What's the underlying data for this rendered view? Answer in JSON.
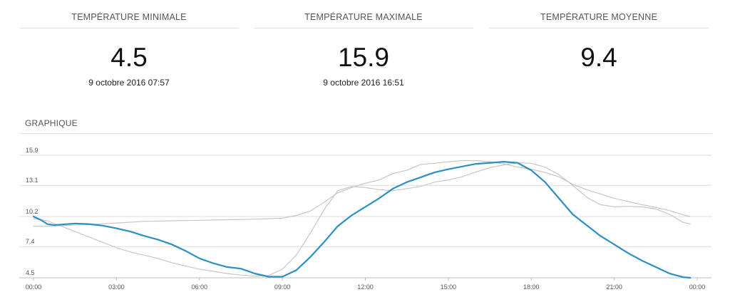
{
  "stats": [
    {
      "title": "TEMPÉRATURE MINIMALE",
      "value": "4.5",
      "date": "9 octobre 2016 07:57"
    },
    {
      "title": "TEMPÉRATURE MAXIMALE",
      "value": "15.9",
      "date": "9 octobre 2016 16:51"
    },
    {
      "title": "TEMPÉRATURE MOYENNE",
      "value": "9.4",
      "date": ""
    }
  ],
  "section": {
    "title": "GRAPHIQUE"
  },
  "chart_data": {
    "type": "line",
    "xlabel": "",
    "ylabel": "",
    "x_ticks": [
      "00:00",
      "03:00",
      "06:00",
      "09:00",
      "12:00",
      "15:00",
      "18:00",
      "21:00",
      "00:00"
    ],
    "xlim": [
      0,
      24
    ],
    "y_ticks": [
      "4.5",
      "7.4",
      "10.2",
      "13.1",
      "15.9"
    ],
    "y_tick_values": [
      4.5,
      7.4,
      10.2,
      13.1,
      15.9
    ],
    "ylim": [
      4.5,
      15.9
    ],
    "grid": true,
    "legend": "none",
    "series": [
      {
        "color": "#2b8fc6",
        "emphasis": "main",
        "points": [
          [
            0,
            10.2
          ],
          [
            0.25,
            9.9
          ],
          [
            0.5,
            9.5
          ],
          [
            0.75,
            9.4
          ],
          [
            1,
            9.45
          ],
          [
            1.5,
            9.55
          ],
          [
            2,
            9.5
          ],
          [
            2.5,
            9.35
          ],
          [
            3,
            9.1
          ],
          [
            3.5,
            8.8
          ],
          [
            4,
            8.4
          ],
          [
            4.5,
            8.05
          ],
          [
            5,
            7.6
          ],
          [
            5.5,
            7.0
          ],
          [
            6,
            6.3
          ],
          [
            6.5,
            5.85
          ],
          [
            7,
            5.5
          ],
          [
            7.5,
            5.35
          ],
          [
            8,
            4.9
          ],
          [
            8.5,
            4.6
          ],
          [
            9,
            4.6
          ],
          [
            9.5,
            5.2
          ],
          [
            10,
            6.4
          ],
          [
            10.5,
            7.8
          ],
          [
            11,
            9.3
          ],
          [
            11.5,
            10.3
          ],
          [
            12,
            11.1
          ],
          [
            12.5,
            11.9
          ],
          [
            13,
            12.8
          ],
          [
            13.5,
            13.4
          ],
          [
            14,
            13.85
          ],
          [
            14.5,
            14.3
          ],
          [
            15,
            14.6
          ],
          [
            15.5,
            14.85
          ],
          [
            16,
            15.1
          ],
          [
            16.5,
            15.2
          ],
          [
            17,
            15.3
          ],
          [
            17.5,
            15.2
          ],
          [
            18,
            14.5
          ],
          [
            18.5,
            13.4
          ],
          [
            19,
            11.9
          ],
          [
            19.5,
            10.4
          ],
          [
            20,
            9.4
          ],
          [
            20.5,
            8.4
          ],
          [
            21,
            7.6
          ],
          [
            21.5,
            6.8
          ],
          [
            22,
            6.1
          ],
          [
            22.5,
            5.5
          ],
          [
            23,
            4.9
          ],
          [
            23.5,
            4.55
          ],
          [
            23.75,
            4.5
          ]
        ]
      },
      {
        "color": "#c6c6c6",
        "emphasis": "reference",
        "points": [
          [
            0,
            9.3
          ],
          [
            0.5,
            9.3
          ],
          [
            1,
            9.35
          ],
          [
            2,
            9.45
          ],
          [
            3,
            9.6
          ],
          [
            4,
            9.75
          ],
          [
            5,
            9.8
          ],
          [
            6,
            9.85
          ],
          [
            7,
            9.9
          ],
          [
            8,
            9.95
          ],
          [
            9,
            10.05
          ],
          [
            9.5,
            10.3
          ],
          [
            10,
            10.7
          ],
          [
            10.5,
            11.5
          ],
          [
            11,
            12.4
          ],
          [
            11.5,
            12.9
          ],
          [
            12,
            13.3
          ],
          [
            12.5,
            13.6
          ],
          [
            13,
            14.2
          ],
          [
            13.5,
            14.5
          ],
          [
            14,
            15.05
          ],
          [
            14.5,
            15.15
          ],
          [
            15,
            15.3
          ],
          [
            15.5,
            15.4
          ],
          [
            16,
            15.4
          ],
          [
            16.5,
            15.3
          ],
          [
            17,
            15.1
          ],
          [
            17.5,
            14.8
          ],
          [
            18,
            14.6
          ],
          [
            18.5,
            14.3
          ],
          [
            19,
            13.9
          ],
          [
            19.5,
            13.2
          ],
          [
            20,
            12.7
          ],
          [
            20.5,
            12.3
          ],
          [
            21,
            11.9
          ],
          [
            21.5,
            11.6
          ],
          [
            22,
            11.3
          ],
          [
            22.5,
            11.05
          ],
          [
            23,
            10.75
          ],
          [
            23.5,
            10.35
          ],
          [
            23.75,
            10.2
          ]
        ]
      },
      {
        "color": "#c6c6c6",
        "emphasis": "reference",
        "points": [
          [
            0,
            10.0
          ],
          [
            0.5,
            9.8
          ],
          [
            1,
            9.3
          ],
          [
            1.5,
            8.8
          ],
          [
            2,
            8.3
          ],
          [
            2.5,
            7.8
          ],
          [
            3,
            7.3
          ],
          [
            3.5,
            6.9
          ],
          [
            4,
            6.6
          ],
          [
            4.5,
            6.3
          ],
          [
            5,
            5.9
          ],
          [
            5.5,
            5.6
          ],
          [
            6,
            5.3
          ],
          [
            6.5,
            5.1
          ],
          [
            7,
            4.9
          ],
          [
            7.5,
            4.75
          ],
          [
            8,
            4.65
          ],
          [
            8.5,
            4.7
          ],
          [
            9,
            5.3
          ],
          [
            9.5,
            6.6
          ],
          [
            10,
            8.6
          ],
          [
            10.5,
            10.8
          ],
          [
            11,
            12.6
          ],
          [
            11.5,
            13.0
          ],
          [
            12,
            12.9
          ],
          [
            12.5,
            12.7
          ],
          [
            13,
            12.6
          ],
          [
            13.5,
            12.8
          ],
          [
            14,
            13.0
          ],
          [
            14.5,
            13.4
          ],
          [
            15,
            13.6
          ],
          [
            15.5,
            13.9
          ],
          [
            16,
            14.35
          ],
          [
            16.5,
            14.75
          ],
          [
            17,
            15.0
          ],
          [
            17.5,
            15.2
          ],
          [
            18,
            15.15
          ],
          [
            18.5,
            14.8
          ],
          [
            19,
            14.1
          ],
          [
            19.5,
            13.1
          ],
          [
            20,
            12.0
          ],
          [
            20.5,
            11.3
          ],
          [
            21,
            11.1
          ],
          [
            21.5,
            11.15
          ],
          [
            22,
            11.1
          ],
          [
            22.5,
            10.9
          ],
          [
            23,
            10.4
          ],
          [
            23.5,
            9.65
          ],
          [
            23.75,
            9.5
          ]
        ]
      }
    ]
  }
}
